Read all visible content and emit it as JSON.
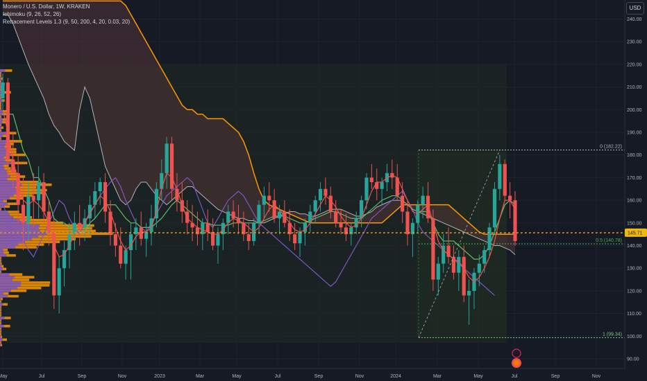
{
  "header": {
    "symbol_line": "Monero / U.S. Dollar, 1W, KRAKEN",
    "ichimoku": "Ichimoku (9, 26, 52, 26)",
    "retracement": "Retracement Levels 1.3 (9, 50, 200, 4, 20, 0.03, 20)",
    "currency": "USD"
  },
  "chart_data": {
    "type": "candlestick",
    "ylim": [
      86,
      248
    ],
    "y_ticks": [
      90,
      100,
      110,
      120,
      130,
      140,
      150,
      160,
      170,
      180,
      190,
      200,
      210,
      220,
      230,
      240
    ],
    "y_tick_labels": [
      "90.00",
      "100.00",
      "110.00",
      "120.00",
      "130.00",
      "140.00",
      "150.00",
      "160.00",
      "170.00",
      "180.00",
      "190.00",
      "200.00",
      "210.00",
      "220.00",
      "230.00",
      "240.00"
    ],
    "x_ticks": [
      "May",
      "Jul",
      "Sep",
      "Nov",
      "2023",
      "Mar",
      "May",
      "Jul",
      "Sep",
      "Nov",
      "2024",
      "Mar",
      "May",
      "Jul",
      "Sep",
      "Nov"
    ],
    "current_price": "145.71",
    "fib_levels": [
      {
        "ratio": "0",
        "label": "0 (182.22)",
        "price": 182.22,
        "color": "#b2b5be"
      },
      {
        "ratio": "0.5",
        "label": "0.5 (140.78)",
        "price": 140.78,
        "color": "#4caf50"
      },
      {
        "ratio": "1",
        "label": "1 (99.34)",
        "price": 99.34,
        "color": "#81c784"
      }
    ],
    "colors": {
      "up": "#26a69a",
      "down": "#ef5350",
      "tenkan": "#ef5350",
      "kijun": "#66bb6a",
      "span_a": "#b2b5be",
      "span_b": "#ff9800",
      "chikou": "#7e57c2",
      "price_line": "#f0b90b",
      "volume_profile": "#ff9800",
      "volume_profile_alt": "#7e57c2"
    },
    "candles": [
      [
        205,
        216,
        200,
        212
      ],
      [
        212,
        214,
        170,
        178
      ],
      [
        178,
        190,
        165,
        172
      ],
      [
        172,
        180,
        150,
        158
      ],
      [
        158,
        170,
        138,
        150
      ],
      [
        150,
        168,
        142,
        162
      ],
      [
        162,
        172,
        148,
        160
      ],
      [
        160,
        175,
        152,
        168
      ],
      [
        168,
        172,
        150,
        155
      ],
      [
        155,
        160,
        140,
        146
      ],
      [
        146,
        152,
        112,
        118
      ],
      [
        118,
        135,
        110,
        130
      ],
      [
        130,
        142,
        122,
        138
      ],
      [
        138,
        150,
        130,
        145
      ],
      [
        145,
        155,
        138,
        150
      ],
      [
        150,
        158,
        140,
        148
      ],
      [
        148,
        156,
        142,
        152
      ],
      [
        152,
        162,
        145,
        158
      ],
      [
        158,
        168,
        152,
        164
      ],
      [
        164,
        170,
        158,
        168
      ],
      [
        168,
        172,
        150,
        155
      ],
      [
        155,
        160,
        140,
        145
      ],
      [
        145,
        150,
        135,
        140
      ],
      [
        140,
        148,
        130,
        132
      ],
      [
        132,
        140,
        125,
        138
      ],
      [
        138,
        150,
        125,
        145
      ],
      [
        145,
        152,
        138,
        148
      ],
      [
        148,
        155,
        140,
        143
      ],
      [
        143,
        150,
        135,
        146
      ],
      [
        146,
        158,
        140,
        152
      ],
      [
        152,
        168,
        148,
        165
      ],
      [
        165,
        178,
        160,
        172
      ],
      [
        172,
        188,
        165,
        185
      ],
      [
        185,
        188,
        160,
        165
      ],
      [
        165,
        172,
        155,
        160
      ],
      [
        160,
        168,
        150,
        155
      ],
      [
        155,
        160,
        145,
        150
      ],
      [
        150,
        158,
        142,
        148
      ],
      [
        148,
        155,
        140,
        145
      ],
      [
        145,
        152,
        138,
        150
      ],
      [
        150,
        156,
        142,
        146
      ],
      [
        146,
        152,
        138,
        140
      ],
      [
        140,
        148,
        132,
        145
      ],
      [
        145,
        152,
        138,
        150
      ],
      [
        150,
        158,
        145,
        155
      ],
      [
        155,
        160,
        148,
        152
      ],
      [
        152,
        158,
        145,
        150
      ],
      [
        150,
        155,
        142,
        145
      ],
      [
        145,
        150,
        138,
        142
      ],
      [
        142,
        152,
        140,
        150
      ],
      [
        150,
        160,
        145,
        158
      ],
      [
        158,
        166,
        152,
        162
      ],
      [
        162,
        168,
        155,
        160
      ],
      [
        160,
        165,
        150,
        152
      ],
      [
        152,
        158,
        145,
        155
      ],
      [
        155,
        160,
        148,
        150
      ],
      [
        150,
        156,
        142,
        145
      ],
      [
        145,
        150,
        138,
        141
      ],
      [
        141,
        148,
        135,
        146
      ],
      [
        146,
        152,
        140,
        150
      ],
      [
        150,
        158,
        146,
        155
      ],
      [
        155,
        162,
        150,
        160
      ],
      [
        160,
        168,
        155,
        165
      ],
      [
        165,
        170,
        158,
        162
      ],
      [
        162,
        166,
        152,
        155
      ],
      [
        155,
        160,
        148,
        150
      ],
      [
        150,
        156,
        145,
        148
      ],
      [
        148,
        154,
        142,
        145
      ],
      [
        145,
        150,
        140,
        148
      ],
      [
        148,
        155,
        145,
        152
      ],
      [
        152,
        162,
        148,
        160
      ],
      [
        160,
        172,
        156,
        170
      ],
      [
        170,
        176,
        165,
        168
      ],
      [
        168,
        174,
        160,
        165
      ],
      [
        165,
        170,
        158,
        168
      ],
      [
        168,
        176,
        164,
        172
      ],
      [
        172,
        178,
        165,
        170
      ],
      [
        170,
        176,
        160,
        162
      ],
      [
        162,
        168,
        150,
        155
      ],
      [
        155,
        160,
        140,
        145
      ],
      [
        145,
        152,
        135,
        150
      ],
      [
        150,
        160,
        146,
        158
      ],
      [
        158,
        166,
        152,
        162
      ],
      [
        162,
        168,
        150,
        152
      ],
      [
        152,
        156,
        120,
        125
      ],
      [
        125,
        135,
        118,
        132
      ],
      [
        132,
        145,
        128,
        140
      ],
      [
        140,
        148,
        132,
        135
      ],
      [
        135,
        140,
        125,
        128
      ],
      [
        128,
        138,
        120,
        135
      ],
      [
        135,
        140,
        115,
        118
      ],
      [
        118,
        125,
        105,
        120
      ],
      [
        120,
        130,
        112,
        128
      ],
      [
        128,
        136,
        122,
        132
      ],
      [
        132,
        140,
        128,
        138
      ],
      [
        138,
        150,
        135,
        148
      ],
      [
        148,
        168,
        145,
        165
      ],
      [
        165,
        180,
        160,
        176
      ],
      [
        176,
        178,
        160,
        162
      ],
      [
        162,
        168,
        152,
        160
      ],
      [
        160,
        164,
        140,
        142
      ]
    ],
    "tenkan": [
      200,
      190,
      178,
      168,
      160,
      158,
      160,
      158,
      155,
      150,
      140,
      135,
      136,
      140,
      145,
      148,
      150,
      154,
      158,
      162,
      160,
      155,
      148,
      142,
      138,
      140,
      144,
      146,
      146,
      148,
      155,
      165,
      172,
      170,
      165,
      158,
      152,
      150,
      148,
      147,
      146,
      145,
      145,
      147,
      150,
      152,
      151,
      150,
      148,
      146,
      148,
      152,
      156,
      158,
      156,
      153,
      150,
      147,
      146,
      147,
      150,
      154,
      158,
      162,
      160,
      157,
      153,
      150,
      148,
      149,
      152,
      158,
      164,
      168,
      168,
      170,
      171,
      170,
      165,
      160,
      155,
      154,
      156,
      158,
      150,
      142,
      138,
      136,
      134,
      133,
      130,
      126,
      124,
      126,
      130,
      135,
      142,
      152,
      160,
      160,
      156
    ],
    "kijun": [
      198,
      198,
      198,
      190,
      182,
      178,
      170,
      170,
      165,
      160,
      152,
      150,
      150,
      148,
      148,
      146,
      146,
      150,
      152,
      155,
      158,
      158,
      158,
      155,
      152,
      150,
      150,
      148,
      148,
      148,
      150,
      152,
      155,
      158,
      160,
      158,
      156,
      154,
      152,
      150,
      150,
      149,
      149,
      149,
      149,
      150,
      150,
      150,
      150,
      150,
      150,
      151,
      152,
      153,
      153,
      153,
      152,
      151,
      150,
      150,
      151,
      152,
      153,
      154,
      155,
      155,
      154,
      153,
      152,
      152,
      152,
      154,
      156,
      158,
      160,
      161,
      162,
      162,
      160,
      158,
      156,
      155,
      155,
      155,
      150,
      145,
      142,
      142,
      142,
      140,
      138,
      136,
      134,
      134,
      136,
      140,
      146,
      152,
      158,
      160,
      158
    ],
    "cloud_a": [
      242,
      242,
      238,
      232,
      226,
      220,
      215,
      210,
      205,
      198,
      193,
      190,
      186,
      184,
      182,
      200,
      210,
      205,
      195,
      185,
      175,
      170,
      165,
      160,
      158,
      160,
      165,
      168,
      168,
      165,
      162,
      160,
      158,
      160,
      162,
      164,
      166,
      166,
      164,
      162,
      160,
      158,
      156,
      155,
      154,
      153,
      152,
      152,
      151,
      151,
      150,
      150,
      151,
      152,
      153,
      154,
      155,
      155,
      154,
      154,
      153,
      153,
      154,
      155,
      156,
      156,
      156,
      155,
      154,
      153,
      153,
      154,
      155,
      157,
      158,
      159,
      160,
      160,
      160,
      158,
      156,
      155,
      154,
      153,
      152,
      151,
      150,
      149,
      148,
      147,
      146,
      145,
      144,
      143,
      142,
      141,
      140,
      140,
      139,
      138,
      136
    ],
    "cloud_b": [
      248,
      248,
      248,
      248,
      248,
      248,
      248,
      248,
      248,
      248,
      248,
      248,
      248,
      248,
      248,
      248,
      248,
      248,
      248,
      248,
      248,
      248,
      248,
      248,
      246,
      242,
      238,
      234,
      230,
      226,
      222,
      218,
      214,
      210,
      206,
      202,
      200,
      200,
      198,
      198,
      196,
      196,
      196,
      196,
      194,
      192,
      190,
      186,
      180,
      172,
      165,
      160,
      158,
      157,
      156,
      155,
      154,
      153,
      152,
      151,
      150,
      150,
      150,
      150,
      150,
      150,
      150,
      150,
      150,
      150,
      150,
      150,
      150,
      150,
      150,
      152,
      154,
      156,
      158,
      158,
      158,
      158,
      158,
      158,
      158,
      158,
      158,
      158,
      156,
      154,
      152,
      150,
      148,
      146,
      145,
      145,
      145,
      145,
      145,
      145,
      145
    ],
    "chikou": [
      160,
      150,
      140,
      145,
      142,
      138,
      135,
      140,
      145,
      150,
      155,
      160,
      158,
      152,
      148,
      145,
      150,
      155,
      158,
      162,
      165,
      168,
      170,
      166,
      160,
      155,
      150,
      148,
      146,
      150,
      154,
      158,
      162,
      164,
      166,
      168,
      170,
      168,
      162,
      156,
      150,
      148,
      152,
      156,
      160,
      162,
      164,
      162,
      158,
      154,
      150,
      148,
      146,
      144,
      142,
      140,
      138,
      136,
      134,
      132,
      130,
      128,
      126,
      124,
      122,
      124,
      128,
      132,
      136,
      140,
      144,
      148,
      152,
      154,
      156,
      158,
      160,
      162,
      164,
      160,
      156,
      150,
      146,
      144,
      142,
      140,
      138,
      136,
      134,
      132,
      130,
      128,
      126,
      124,
      122,
      120,
      118
    ]
  }
}
